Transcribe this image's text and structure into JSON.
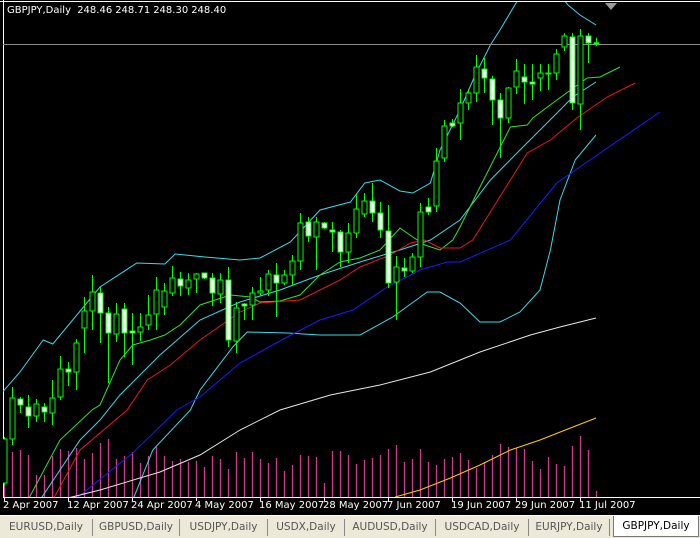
{
  "header": {
    "symbol_period": "GBPJPY,Daily",
    "open": "248.46",
    "high": "248.71",
    "low": "248.30",
    "close": "248.40"
  },
  "colors": {
    "background": "#000000",
    "candle_outline": "#00ff00",
    "bull_fill": "#000000",
    "bear_fill": "#ffffff",
    "bid_line": "#8c8c8c",
    "volume": "#d23c8c",
    "axis": "#ffffff"
  },
  "chart_data": {
    "type": "candlestick",
    "symbol": "GBPJPY",
    "period": "Daily",
    "bid_line": 248.4,
    "candles": [
      [
        226.45,
        228.75,
        226.35,
        228.65
      ],
      [
        228.65,
        231.25,
        228.35,
        230.7
      ],
      [
        230.65,
        230.75,
        229.95,
        230.35
      ],
      [
        230.25,
        230.85,
        229.2,
        229.8
      ],
      [
        229.8,
        230.65,
        229.5,
        230.4
      ],
      [
        230.25,
        230.45,
        229.5,
        230.0
      ],
      [
        229.95,
        231.6,
        229.35,
        230.7
      ],
      [
        230.75,
        232.8,
        230.6,
        232.15
      ],
      [
        232.15,
        232.5,
        231.3,
        232.0
      ],
      [
        232.0,
        233.65,
        231.1,
        233.45
      ],
      [
        234.2,
        235.75,
        232.95,
        235.05
      ],
      [
        235.05,
        236.85,
        234.1,
        236.0
      ],
      [
        235.95,
        236.25,
        233.45,
        234.95
      ],
      [
        234.95,
        235.25,
        231.45,
        233.95
      ],
      [
        233.9,
        235.45,
        233.5,
        234.9
      ],
      [
        235.15,
        235.45,
        232.75,
        233.95
      ],
      [
        234.05,
        234.95,
        232.35,
        233.95
      ],
      [
        234.0,
        234.95,
        233.55,
        234.25
      ],
      [
        234.35,
        235.85,
        234.1,
        234.85
      ],
      [
        234.9,
        236.75,
        234.1,
        236.1
      ],
      [
        235.25,
        236.45,
        234.85,
        236.05
      ],
      [
        235.95,
        237.3,
        235.8,
        236.7
      ],
      [
        236.65,
        237.0,
        235.8,
        236.3
      ],
      [
        236.2,
        236.95,
        235.85,
        236.6
      ],
      [
        236.65,
        236.95,
        235.95,
        236.9
      ],
      [
        236.95,
        236.95,
        236.65,
        236.7
      ],
      [
        236.7,
        236.95,
        235.3,
        235.95
      ],
      [
        235.9,
        236.95,
        235.45,
        236.6
      ],
      [
        236.6,
        237.25,
        233.25,
        233.6
      ],
      [
        233.55,
        235.5,
        232.95,
        235.2
      ],
      [
        235.4,
        235.45,
        234.6,
        235.3
      ],
      [
        235.35,
        236.25,
        234.6,
        235.95
      ],
      [
        235.95,
        236.75,
        235.8,
        236.05
      ],
      [
        236.1,
        237.1,
        235.8,
        236.9
      ],
      [
        236.85,
        237.45,
        234.75,
        236.45
      ],
      [
        236.45,
        237.1,
        236.35,
        236.85
      ],
      [
        236.85,
        237.85,
        236.35,
        237.55
      ],
      [
        237.55,
        239.95,
        237.1,
        239.45
      ],
      [
        239.5,
        239.75,
        238.5,
        238.8
      ],
      [
        238.75,
        239.75,
        237.1,
        239.5
      ],
      [
        239.45,
        239.5,
        239.15,
        239.2
      ],
      [
        239.1,
        239.5,
        238.0,
        239.0
      ],
      [
        239.0,
        239.1,
        237.25,
        238.0
      ],
      [
        238.0,
        239.45,
        237.45,
        238.95
      ],
      [
        238.95,
        240.95,
        238.7,
        240.15
      ],
      [
        239.9,
        240.95,
        239.75,
        240.55
      ],
      [
        240.55,
        241.45,
        239.5,
        239.95
      ],
      [
        239.95,
        240.5,
        238.7,
        239.1
      ],
      [
        239.05,
        240.35,
        236.2,
        236.45
      ],
      [
        236.5,
        237.8,
        234.6,
        237.25
      ],
      [
        237.2,
        237.7,
        236.75,
        237.05
      ],
      [
        237.05,
        237.95,
        236.95,
        237.75
      ],
      [
        237.75,
        240.45,
        237.25,
        240.0
      ],
      [
        240.25,
        240.7,
        239.85,
        240.0
      ],
      [
        240.3,
        243.2,
        240.0,
        242.55
      ],
      [
        242.7,
        244.6,
        242.5,
        244.3
      ],
      [
        244.45,
        244.65,
        244.25,
        244.3
      ],
      [
        244.45,
        246.15,
        243.6,
        245.45
      ],
      [
        245.45,
        246.15,
        245.1,
        245.95
      ],
      [
        245.95,
        247.85,
        245.5,
        247.25
      ],
      [
        247.15,
        247.7,
        245.95,
        246.7
      ],
      [
        246.65,
        246.8,
        244.35,
        245.6
      ],
      [
        245.6,
        245.95,
        242.7,
        244.7
      ],
      [
        244.7,
        246.25,
        244.45,
        246.2
      ],
      [
        246.25,
        247.65,
        245.9,
        247.05
      ],
      [
        246.75,
        247.4,
        245.4,
        246.5
      ],
      [
        246.5,
        247.4,
        245.6,
        246.4
      ],
      [
        246.7,
        247.4,
        246.05,
        246.95
      ],
      [
        246.9,
        247.4,
        246.1,
        246.95
      ],
      [
        246.95,
        248.15,
        246.6,
        247.9
      ],
      [
        248.25,
        248.95,
        248.05,
        248.8
      ],
      [
        248.75,
        248.95,
        245.1,
        245.45
      ],
      [
        245.4,
        249.15,
        244.1,
        248.8
      ],
      [
        248.8,
        248.95,
        247.45,
        248.45
      ],
      [
        248.46,
        248.71,
        248.3,
        248.4
      ]
    ],
    "volume": [
      45,
      45,
      47,
      42,
      22,
      22,
      41,
      48,
      46,
      49,
      38,
      44,
      54,
      58,
      38,
      41,
      45,
      34,
      41,
      50,
      41,
      36,
      38,
      35,
      36,
      30,
      41,
      38,
      28,
      45,
      39,
      45,
      38,
      34,
      39,
      26,
      32,
      42,
      41,
      40,
      14,
      46,
      46,
      42,
      33,
      37,
      39,
      42,
      48,
      52,
      35,
      38,
      48,
      35,
      32,
      38,
      40,
      44,
      37,
      29,
      35,
      42,
      53,
      50,
      49,
      48,
      36,
      28,
      40,
      33,
      31,
      51,
      61,
      47,
      6
    ],
    "indicators": [
      {
        "kind": "bollinger-upper",
        "color": "#3fd8e6",
        "points": [
          [
            -0.5,
            230.85
          ],
          [
            2,
            232.0
          ],
          [
            4.9,
            233.6
          ],
          [
            6.1,
            233.4
          ],
          [
            12,
            236.25
          ],
          [
            16.6,
            237.45
          ],
          [
            20.1,
            237.4
          ],
          [
            21.4,
            237.9
          ],
          [
            25.1,
            237.75
          ],
          [
            29.5,
            237.6
          ],
          [
            32,
            237.7
          ],
          [
            35.8,
            238.5
          ],
          [
            39.5,
            240.1
          ],
          [
            43.3,
            240.5
          ],
          [
            45.1,
            241.45
          ],
          [
            47,
            241.6
          ],
          [
            49.5,
            241.05
          ],
          [
            51.1,
            240.95
          ],
          [
            53.3,
            241.45
          ],
          [
            54.5,
            243.1
          ],
          [
            57,
            245.1
          ],
          [
            58.9,
            246.85
          ],
          [
            60.8,
            248.35
          ],
          [
            62,
            249.1
          ],
          [
            64.6,
            250.85
          ],
          [
            69.5,
            250.85
          ],
          [
            70.5,
            250.35
          ],
          [
            72,
            249.85
          ],
          [
            74,
            249.35
          ]
        ]
      },
      {
        "kind": "bollinger-middle",
        "color": "#3fd8e6",
        "points": [
          [
            4.5,
            225.6
          ],
          [
            9.5,
            228.6
          ],
          [
            12,
            229.6
          ],
          [
            14.5,
            230.85
          ],
          [
            19.5,
            232.85
          ],
          [
            24.5,
            234.6
          ],
          [
            29.5,
            235.5
          ],
          [
            34.5,
            236.1
          ],
          [
            39.5,
            236.85
          ],
          [
            44.5,
            237.5
          ],
          [
            49.5,
            238.1
          ],
          [
            53.3,
            238.6
          ],
          [
            57,
            239.6
          ],
          [
            60.8,
            241.6
          ],
          [
            64.5,
            243.1
          ],
          [
            69.5,
            245.1
          ],
          [
            71.1,
            245.75
          ],
          [
            74,
            246.5
          ]
        ]
      },
      {
        "kind": "bollinger-lower",
        "color": "#3fd8e6",
        "points": [
          [
            16.1,
            225.6
          ],
          [
            18.6,
            228.1
          ],
          [
            23.3,
            230.1
          ],
          [
            24.5,
            231.1
          ],
          [
            28.6,
            233.25
          ],
          [
            30.4,
            234.0
          ],
          [
            35.4,
            233.95
          ],
          [
            39.5,
            233.85
          ],
          [
            44.5,
            233.85
          ],
          [
            48.6,
            234.75
          ],
          [
            52.9,
            236.0
          ],
          [
            54.5,
            236.0
          ],
          [
            57,
            235.45
          ],
          [
            59.5,
            234.5
          ],
          [
            62,
            234.5
          ],
          [
            64.5,
            235.0
          ],
          [
            67,
            236.1
          ],
          [
            68.3,
            238.1
          ],
          [
            69.5,
            240.6
          ],
          [
            71.4,
            242.6
          ],
          [
            74,
            243.85
          ]
        ]
      },
      {
        "kind": "alligator-lips",
        "color": "#33e033",
        "points": [
          [
            3,
            225.6
          ],
          [
            7,
            228.6
          ],
          [
            11,
            230.1
          ],
          [
            12,
            230.35
          ],
          [
            14.5,
            232.6
          ],
          [
            16.1,
            233.35
          ],
          [
            18.3,
            233.6
          ],
          [
            20.1,
            233.85
          ],
          [
            22,
            234.35
          ],
          [
            24.5,
            235.35
          ],
          [
            28.3,
            235.85
          ],
          [
            30.8,
            235.75
          ],
          [
            32,
            235.5
          ],
          [
            34.5,
            235.55
          ],
          [
            37,
            235.85
          ],
          [
            39.5,
            236.85
          ],
          [
            42,
            237.5
          ],
          [
            44.5,
            237.7
          ],
          [
            47,
            238.1
          ],
          [
            49.5,
            239.2
          ],
          [
            51.1,
            238.75
          ],
          [
            52.6,
            238.35
          ],
          [
            54.5,
            238.1
          ],
          [
            56.1,
            238.6
          ],
          [
            57,
            239.25
          ],
          [
            59.5,
            241.25
          ],
          [
            63.3,
            244.25
          ],
          [
            65.4,
            244.35
          ],
          [
            66.1,
            244.7
          ],
          [
            68.6,
            245.45
          ],
          [
            72.9,
            246.7
          ],
          [
            74.5,
            246.75
          ],
          [
            77,
            247.25
          ]
        ]
      },
      {
        "kind": "alligator-teeth",
        "color": "#e41b1b",
        "points": [
          [
            6.1,
            225.6
          ],
          [
            9.5,
            228.1
          ],
          [
            15.4,
            230.1
          ],
          [
            17.9,
            231.6
          ],
          [
            20.8,
            232.35
          ],
          [
            24.5,
            233.6
          ],
          [
            29.5,
            235.0
          ],
          [
            32,
            235.45
          ],
          [
            37,
            235.6
          ],
          [
            39.5,
            236.1
          ],
          [
            42,
            236.6
          ],
          [
            44.5,
            237.25
          ],
          [
            48.3,
            237.85
          ],
          [
            50.8,
            238.45
          ],
          [
            52.6,
            238.6
          ],
          [
            54.5,
            238.2
          ],
          [
            57,
            238.2
          ],
          [
            58.6,
            238.6
          ],
          [
            63.3,
            241.6
          ],
          [
            65.4,
            242.95
          ],
          [
            68.3,
            243.6
          ],
          [
            71.6,
            244.7
          ],
          [
            75.4,
            245.75
          ],
          [
            78.9,
            246.45
          ]
        ]
      },
      {
        "kind": "alligator-jaw",
        "color": "#1a1aff",
        "points": [
          [
            9.1,
            225.7
          ],
          [
            16.1,
            227.95
          ],
          [
            21.6,
            230.1
          ],
          [
            24.5,
            230.75
          ],
          [
            29.5,
            232.45
          ],
          [
            35.4,
            233.75
          ],
          [
            39.5,
            234.6
          ],
          [
            43.6,
            235.1
          ],
          [
            47.9,
            236.25
          ],
          [
            52,
            237.1
          ],
          [
            55.4,
            237.5
          ],
          [
            57,
            237.5
          ],
          [
            63.3,
            238.6
          ],
          [
            69.1,
            241.45
          ],
          [
            74.5,
            242.95
          ],
          [
            82,
            245.0
          ]
        ]
      },
      {
        "kind": "moving-average-long",
        "color": "#e6e6e6",
        "points": [
          [
            7,
            225.6
          ],
          [
            12,
            226.1
          ],
          [
            19.5,
            227.0
          ],
          [
            24.5,
            227.85
          ],
          [
            29.5,
            229.1
          ],
          [
            34.5,
            230.1
          ],
          [
            40.8,
            230.85
          ],
          [
            47,
            231.35
          ],
          [
            53.3,
            232.0
          ],
          [
            59.5,
            233.0
          ],
          [
            65.8,
            233.85
          ],
          [
            69.5,
            234.25
          ],
          [
            74,
            234.7
          ]
        ]
      },
      {
        "kind": "moving-average-longest",
        "color": "#ffcc00",
        "points": [
          [
            48.9,
            225.75
          ],
          [
            52,
            226.1
          ],
          [
            55.8,
            226.7
          ],
          [
            59.5,
            227.35
          ],
          [
            63.3,
            228.1
          ],
          [
            67,
            228.6
          ],
          [
            70.8,
            229.2
          ],
          [
            74,
            229.7
          ]
        ]
      }
    ],
    "x_tick_labels": [
      {
        "bar": 0,
        "label": "2 Apr 2007"
      },
      {
        "bar": 8,
        "label": "12 Apr 2007"
      },
      {
        "bar": 16,
        "label": "24 Apr 2007"
      },
      {
        "bar": 24,
        "label": "4 May 2007"
      },
      {
        "bar": 32,
        "label": "16 May 2007"
      },
      {
        "bar": 40,
        "label": "28 May 2007"
      },
      {
        "bar": 48,
        "label": "7 Jun 2007"
      },
      {
        "bar": 56,
        "label": "19 Jun 2007"
      },
      {
        "bar": 64,
        "label": "29 Jun 2007"
      },
      {
        "bar": 72,
        "label": "11 Jul 2007"
      }
    ]
  },
  "tabs": [
    {
      "label": "EURUSD,Daily",
      "active": false
    },
    {
      "label": "GBPUSD,Daily",
      "active": false
    },
    {
      "label": "USDJPY,Daily",
      "active": false
    },
    {
      "label": "USDX,Daily",
      "active": false
    },
    {
      "label": "AUDUSD,Daily",
      "active": false
    },
    {
      "label": "USDCAD,Daily",
      "active": false
    },
    {
      "label": "EURJPY,Daily",
      "active": false
    },
    {
      "label": "GBPJPY,Daily",
      "active": true
    }
  ]
}
